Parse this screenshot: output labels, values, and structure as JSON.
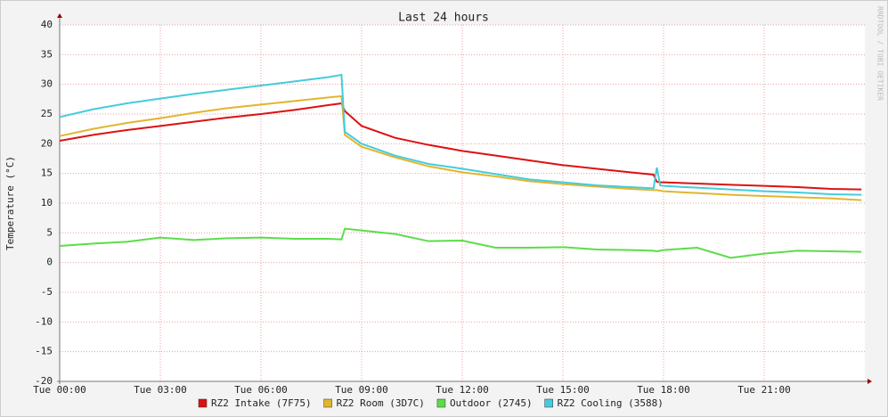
{
  "chart_data": {
    "type": "line",
    "title": "Last 24 hours",
    "y_label": "Temperature (°C)",
    "watermark": "RRDTOOL / TOBI OETIKER",
    "x": [
      0,
      1,
      2,
      3,
      4,
      5,
      6,
      7,
      8,
      8.4,
      8.5,
      9,
      10,
      11,
      12,
      13,
      14,
      15,
      16,
      17,
      17.7,
      17.8,
      17.9,
      18,
      19,
      20,
      21,
      22,
      23,
      23.9
    ],
    "series": [
      {
        "name": "RZ2 Intake (7F75)",
        "color": "#dd1111",
        "values": [
          20.5,
          21.5,
          22.3,
          23.0,
          23.7,
          24.4,
          25.0,
          25.7,
          26.5,
          26.8,
          25.5,
          23.0,
          21.0,
          19.8,
          18.8,
          18.0,
          17.2,
          16.4,
          15.8,
          15.2,
          14.8,
          13.6,
          13.5,
          13.5,
          13.3,
          13.1,
          12.9,
          12.7,
          12.4,
          12.3
        ]
      },
      {
        "name": "RZ2 Room (3D7C)",
        "color": "#e2b52e",
        "values": [
          21.3,
          22.5,
          23.5,
          24.3,
          25.2,
          26.0,
          26.6,
          27.2,
          27.8,
          28.0,
          21.5,
          19.5,
          17.7,
          16.2,
          15.2,
          14.5,
          13.7,
          13.2,
          12.8,
          12.4,
          12.2,
          12.2,
          12.1,
          12.0,
          11.7,
          11.4,
          11.2,
          11.0,
          10.8,
          10.5
        ]
      },
      {
        "name": "Outdoor (2745)",
        "color": "#5ddc4a",
        "values": [
          2.8,
          3.2,
          3.5,
          4.2,
          3.8,
          4.1,
          4.2,
          4.0,
          4.0,
          3.9,
          5.7,
          5.4,
          4.8,
          3.6,
          3.7,
          2.5,
          2.5,
          2.6,
          2.2,
          2.1,
          2.0,
          1.9,
          2.0,
          2.1,
          2.5,
          0.8,
          1.5,
          2.0,
          1.9,
          1.8
        ]
      },
      {
        "name": "RZ2 Cooling (3588)",
        "color": "#44ccdd",
        "values": [
          24.5,
          25.8,
          26.8,
          27.6,
          28.4,
          29.1,
          29.8,
          30.5,
          31.2,
          31.6,
          22.0,
          20.0,
          18.0,
          16.6,
          15.8,
          14.9,
          14.0,
          13.5,
          13.0,
          12.7,
          12.5,
          16.0,
          13.0,
          12.9,
          12.6,
          12.3,
          12.0,
          11.8,
          11.5,
          11.4
        ]
      }
    ],
    "xlim": [
      0,
      24
    ],
    "xticks": [
      {
        "value": 0,
        "label": "Tue 00:00"
      },
      {
        "value": 3,
        "label": "Tue 03:00"
      },
      {
        "value": 6,
        "label": "Tue 06:00"
      },
      {
        "value": 9,
        "label": "Tue 09:00"
      },
      {
        "value": 12,
        "label": "Tue 12:00"
      },
      {
        "value": 15,
        "label": "Tue 15:00"
      },
      {
        "value": 18,
        "label": "Tue 18:00"
      },
      {
        "value": 21,
        "label": "Tue 21:00"
      }
    ],
    "ylim": [
      -20,
      40
    ],
    "yticks": [
      -20,
      -15,
      -10,
      -5,
      0,
      5,
      10,
      15,
      20,
      25,
      30,
      35,
      40
    ],
    "grid": true
  }
}
